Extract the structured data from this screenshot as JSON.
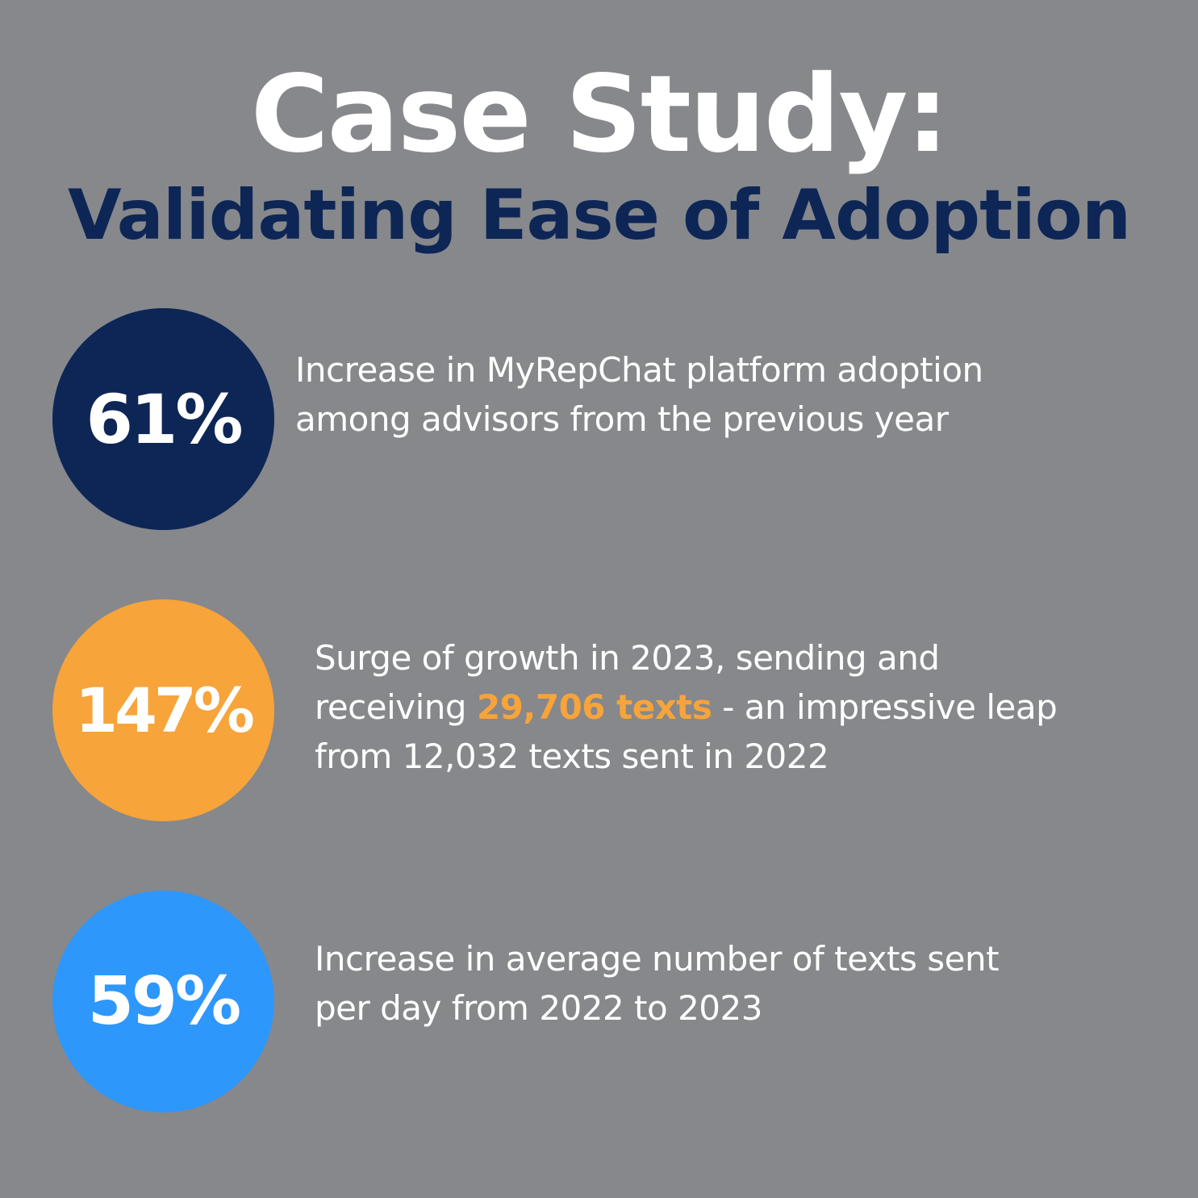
{
  "header": {
    "title": "Case Study:",
    "subtitle": "Validating Ease of Adoption"
  },
  "colors": {
    "background": "#86888b",
    "title": "#ffffff",
    "subtitle": "#0d2656",
    "highlight": "#f7a43a"
  },
  "stats": [
    {
      "value": "61%",
      "color": "#0d2656",
      "lines": [
        "Increase in MyRepChat platform adoption",
        "among advisors from the previous year"
      ]
    },
    {
      "value": "147%",
      "color": "#f7a43a",
      "line1": "Surge of growth in 2023, sending and",
      "line2_before": "receiving ",
      "line2_highlight": "29,706 texts",
      "line2_after": " - an impressive leap",
      "line3": "from 12,032 texts sent in 2022"
    },
    {
      "value": "59%",
      "color": "#2e97fc",
      "lines": [
        "Increase in average number of texts sent",
        "per day from 2022 to 2023"
      ]
    }
  ]
}
